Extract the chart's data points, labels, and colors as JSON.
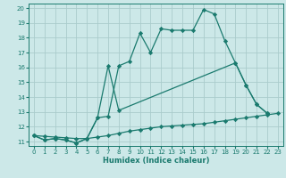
{
  "xlabel": "Humidex (Indice chaleur)",
  "bg_color": "#cce8e8",
  "grid_color": "#aacccc",
  "line_color": "#1a7a6e",
  "xlim": [
    -0.5,
    23.5
  ],
  "ylim": [
    10.7,
    20.3
  ],
  "xticks": [
    0,
    1,
    2,
    3,
    4,
    5,
    6,
    7,
    8,
    9,
    10,
    11,
    12,
    13,
    14,
    15,
    16,
    17,
    18,
    19,
    20,
    21,
    22,
    23
  ],
  "yticks": [
    11,
    12,
    13,
    14,
    15,
    16,
    17,
    18,
    19,
    20
  ],
  "line1_x": [
    0,
    1,
    2,
    3,
    4,
    5,
    6,
    7,
    8,
    9,
    10,
    11,
    12,
    13,
    14,
    15,
    16,
    17,
    18,
    19,
    20,
    21,
    22
  ],
  "line1_y": [
    11.4,
    11.1,
    11.2,
    11.1,
    10.9,
    11.2,
    12.6,
    12.7,
    16.1,
    16.4,
    18.3,
    17.0,
    18.6,
    18.5,
    18.5,
    18.5,
    19.9,
    19.6,
    17.8,
    16.3,
    14.8,
    13.5,
    12.9
  ],
  "line2_x": [
    0,
    1,
    2,
    3,
    4,
    5,
    6,
    7,
    8,
    19,
    20,
    21,
    22
  ],
  "line2_y": [
    11.4,
    11.1,
    11.2,
    11.1,
    10.9,
    11.2,
    12.6,
    16.1,
    13.1,
    16.3,
    14.8,
    13.5,
    12.9
  ],
  "line3_x": [
    0,
    1,
    2,
    3,
    4,
    5,
    6,
    7,
    8,
    9,
    10,
    11,
    12,
    13,
    14,
    15,
    16,
    17,
    18,
    19,
    20,
    21,
    22,
    23
  ],
  "line3_y": [
    11.4,
    11.35,
    11.3,
    11.25,
    11.2,
    11.2,
    11.3,
    11.4,
    11.55,
    11.7,
    11.8,
    11.9,
    12.0,
    12.05,
    12.1,
    12.15,
    12.2,
    12.3,
    12.4,
    12.5,
    12.6,
    12.7,
    12.8,
    12.9
  ],
  "marker": "D",
  "markersize": 2.2,
  "linewidth": 0.9
}
